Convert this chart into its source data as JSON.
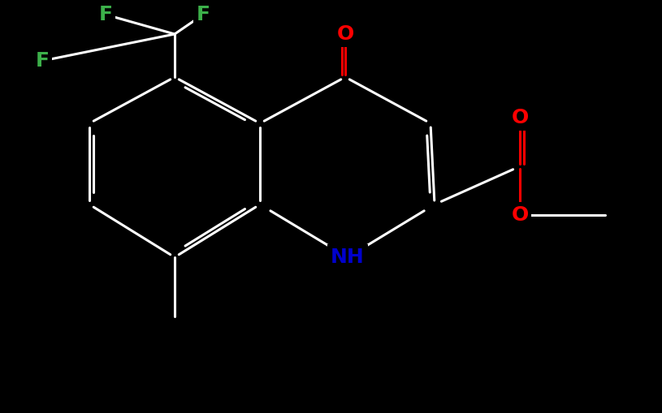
{
  "background_color": "#000000",
  "bond_color": "#ffffff",
  "figsize": [
    8.15,
    5.09
  ],
  "dpi": 100,
  "colors": {
    "F": "#3cb04a",
    "O": "#ff0000",
    "N": "#0000cc",
    "C": "#ffffff",
    "bond": "#ffffff"
  },
  "font_size_atom": 18,
  "font_size_small": 14,
  "lw": 2.2
}
